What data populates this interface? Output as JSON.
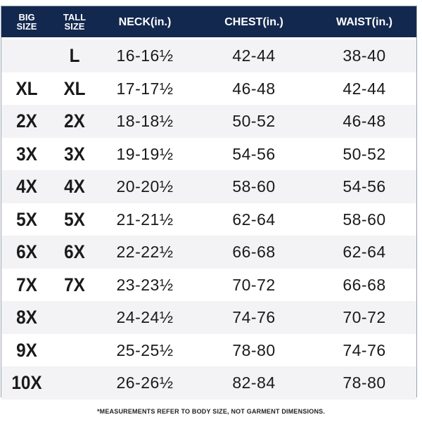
{
  "table": {
    "header": [
      [
        "BIG",
        "SIZE"
      ],
      [
        "TALL",
        "SIZE"
      ],
      [
        "NECK(in.)"
      ],
      [
        "CHEST(in.)"
      ],
      [
        "WAIST(in.)"
      ]
    ],
    "rows": [
      [
        null,
        "L",
        "16-16½",
        "42-44",
        "38-40"
      ],
      [
        "XL",
        "XL",
        "17-17½",
        "46-48",
        "42-44"
      ],
      [
        "2X",
        "2X",
        "18-18½",
        "50-52",
        "46-48"
      ],
      [
        "3X",
        "3X",
        "19-19½",
        "54-56",
        "50-52"
      ],
      [
        "4X",
        "4X",
        "20-20½",
        "58-60",
        "54-56"
      ],
      [
        "5X",
        "5X",
        "21-21½",
        "62-64",
        "58-60"
      ],
      [
        "6X",
        "6X",
        "22-22½",
        "66-68",
        "62-64"
      ],
      [
        "7X",
        "7X",
        "23-23½",
        "70-72",
        "66-68"
      ],
      [
        "8X",
        null,
        "24-24½",
        "74-76",
        "70-72"
      ],
      [
        "9X",
        null,
        "25-25½",
        "78-80",
        "74-76"
      ],
      [
        "10X",
        null,
        "26-26½",
        "82-84",
        "78-80"
      ]
    ]
  },
  "footnote": "*MEASUREMENTS REFER TO BODY SIZE, NOT GARMENT DIMENSIONS."
}
